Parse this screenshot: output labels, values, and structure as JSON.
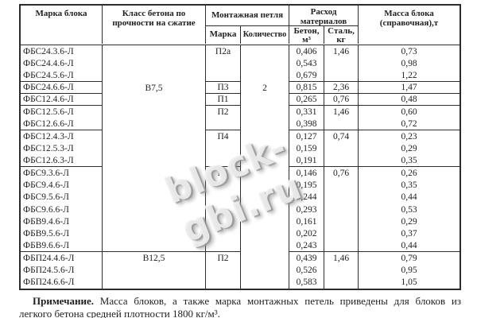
{
  "watermark": {
    "text": "block-gbi.ru"
  },
  "colors": {
    "text": "#1f1f1f",
    "border": "#2d2d2d",
    "watermark_fill": "#eeeeee",
    "watermark_shadow": "#949494"
  },
  "table": {
    "header": {
      "block": "Марка блока",
      "class": "Класс бетона по прочности на сжатие",
      "loop": "Монтажная петля",
      "loop_mark": "Марка",
      "loop_qty": "Количество",
      "consumption": "Расход материалов",
      "concrete": "Бетон, м³",
      "steel": "Сталь, кг",
      "mass": "Масса блока (справочная),т"
    },
    "rows": [
      {
        "block": "ФБС24.3.6-Л",
        "class": "",
        "loop": "П2а",
        "qty": "",
        "concrete": "0,406",
        "steel": "1,46",
        "mass": "0,73"
      },
      {
        "block": "ФБС24.4.6-Л",
        "class": "",
        "loop": "",
        "qty": "",
        "concrete": "0,543",
        "steel": "",
        "mass": "0,98"
      },
      {
        "block": "ФБС24.5.6-Л",
        "class": "",
        "loop": "",
        "qty": "",
        "concrete": "0,679",
        "steel": "",
        "mass": "1,22",
        "divider": true
      },
      {
        "block": "ФБС24.6.6-Л",
        "class": "В7,5",
        "loop": "П3",
        "qty": "2",
        "concrete": "0,815",
        "steel": "2,36",
        "mass": "1,47",
        "divider": true
      },
      {
        "block": "ФБС12.4.6-Л",
        "class": "",
        "loop": "П1",
        "qty": "",
        "concrete": "0,265",
        "steel": "0,76",
        "mass": "0,48",
        "divider": true
      },
      {
        "block": "ФБС12.5.6-Л",
        "class": "",
        "loop": "П2",
        "qty": "",
        "concrete": "0,331",
        "steel": "1,46",
        "mass": "0,60"
      },
      {
        "block": "ФБС12.6.6-Л",
        "class": "",
        "loop": "",
        "qty": "",
        "concrete": "0,398",
        "steel": "",
        "mass": "0,72",
        "divider": true
      },
      {
        "block": "ФБС12.4.3-Л",
        "class": "",
        "loop": "П4",
        "qty": "",
        "concrete": "0,127",
        "steel": "0,74",
        "mass": "0,23"
      },
      {
        "block": "ФБС12.5.3-Л",
        "class": "",
        "loop": "",
        "qty": "",
        "concrete": "0,159",
        "steel": "",
        "mass": "0,29"
      },
      {
        "block": "ФБС12.6.3-Л",
        "class": "",
        "loop": "",
        "qty": "",
        "concrete": "0,191",
        "steel": "",
        "mass": "0,35",
        "divider": true
      },
      {
        "block": "ФБС9.3.6-Л",
        "class": "",
        "loop": "П1",
        "qty": "",
        "concrete": "0,146",
        "steel": "0,76",
        "mass": "0,26"
      },
      {
        "block": "ФБС9.4.6-Л",
        "class": "",
        "loop": "",
        "qty": "",
        "concrete": "0,195",
        "steel": "",
        "mass": "0,35"
      },
      {
        "block": "ФБС9.5.6-Л",
        "class": "",
        "loop": "",
        "qty": "",
        "concrete": "0,244",
        "steel": "",
        "mass": "0,44"
      },
      {
        "block": "ФБС9.6.6-Л",
        "class": "",
        "loop": "",
        "qty": "",
        "concrete": "0,293",
        "steel": "",
        "mass": "0,53"
      },
      {
        "block": "ФБВ9.4.6-Л",
        "class": "",
        "loop": "",
        "qty": "",
        "concrete": "0,161",
        "steel": "",
        "mass": "0,29"
      },
      {
        "block": "ФБВ9.5.6-Л",
        "class": "",
        "loop": "",
        "qty": "",
        "concrete": "0,202",
        "steel": "",
        "mass": "0,37"
      },
      {
        "block": "ФБВ9.6.6-Л",
        "class": "",
        "loop": "",
        "qty": "",
        "concrete": "0,243",
        "steel": "",
        "mass": "0,44",
        "divider": true,
        "class_divider": true
      },
      {
        "block": "ФБП24.4.6-Л",
        "class": "В12,5",
        "loop": "П2",
        "qty": "",
        "concrete": "0,439",
        "steel": "1,46",
        "mass": "0,79"
      },
      {
        "block": "ФБП24.5.6-Л",
        "class": "",
        "loop": "",
        "qty": "",
        "concrete": "0,526",
        "steel": "",
        "mass": "0,95"
      },
      {
        "block": "ФБП24.6.6-Л",
        "class": "",
        "loop": "",
        "qty": "",
        "concrete": "0,583",
        "steel": "",
        "mass": "1,05"
      }
    ]
  },
  "note": {
    "label": "Примечание.",
    "line1": "Масса блоков, а также марка монтажных петель приведены для блоков из",
    "line2": "легкого бетона средней плотности 1800 кг/м³."
  }
}
